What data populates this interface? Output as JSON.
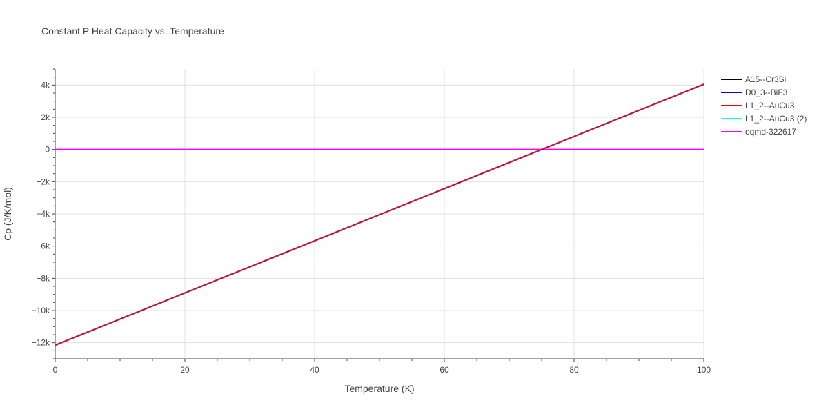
{
  "chart_data": {
    "type": "line",
    "title": "Constant P Heat Capacity vs. Temperature",
    "xlabel": "Temperature (K)",
    "ylabel": "Cp (J/K/mol)",
    "xlim": [
      0,
      100
    ],
    "ylim": [
      -13000,
      5000
    ],
    "x_ticks": [
      0,
      20,
      40,
      60,
      80,
      100
    ],
    "x_tick_labels": [
      "0",
      "20",
      "40",
      "60",
      "80",
      "100"
    ],
    "y_ticks": [
      -12000,
      -10000,
      -8000,
      -6000,
      -4000,
      -2000,
      0,
      2000,
      4000
    ],
    "y_tick_labels": [
      "−12k",
      "−10k",
      "−8k",
      "−6k",
      "−4k",
      "−2k",
      "0",
      "2k",
      "4k"
    ],
    "grid": true,
    "legend_position": "right",
    "series": [
      {
        "name": "A15--Cr3Si",
        "color": "#000000",
        "x": [
          0,
          100
        ],
        "y": [
          -12150,
          4050
        ]
      },
      {
        "name": "D0_3--BiF3",
        "color": "#0000ff",
        "x": [
          0,
          100
        ],
        "y": [
          -12150,
          4050
        ]
      },
      {
        "name": "L1_2--AuCu3",
        "color": "#ff0000",
        "x": [
          0,
          100
        ],
        "y": [
          -12150,
          4050
        ]
      },
      {
        "name": "L1_2--AuCu3 (2)",
        "color": "#00ffff",
        "x": [
          0,
          100
        ],
        "y": [
          -12150,
          4050
        ]
      },
      {
        "name": "oqmd-322617",
        "color": "#ff00ff",
        "x": [
          0,
          100
        ],
        "y": [
          0,
          0
        ]
      }
    ]
  }
}
